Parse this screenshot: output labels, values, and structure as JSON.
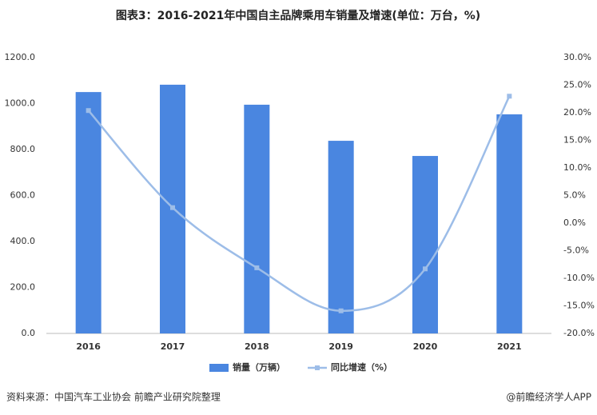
{
  "chart_data": {
    "type": "bar",
    "title": "图表3：2016-2021年中国自主品牌乘用车销量及增速(单位：万台，%)",
    "categories": [
      "2016",
      "2017",
      "2018",
      "2019",
      "2020",
      "2021"
    ],
    "series": [
      {
        "name": "销量（万辆）",
        "type": "bar",
        "color": "#4a86e0",
        "values": [
          1050,
          1082,
          995,
          838,
          772,
          953
        ]
      },
      {
        "name": "同比增速（%）",
        "type": "line",
        "axis": "y2",
        "color": "#9dbde8",
        "values": [
          20.4,
          2.8,
          -8.1,
          -15.9,
          -8.3,
          23.0
        ]
      }
    ],
    "ylim": [
      0,
      1200
    ],
    "yticks": [
      {
        "value": 0,
        "label": "0.0"
      },
      {
        "value": 200,
        "label": "200.0"
      },
      {
        "value": 400,
        "label": "400.0"
      },
      {
        "value": 600,
        "label": "600.0"
      },
      {
        "value": 800,
        "label": "800.0"
      },
      {
        "value": 1000,
        "label": "1000.0"
      },
      {
        "value": 1200,
        "label": "1200.0"
      }
    ],
    "y2lim": [
      -20,
      30
    ],
    "y2ticks": [
      {
        "value": -20,
        "label": "-20.0%"
      },
      {
        "value": -15,
        "label": "-15.0%"
      },
      {
        "value": -10,
        "label": "-10.0%"
      },
      {
        "value": -5,
        "label": "-5.0%"
      },
      {
        "value": 0,
        "label": "0.0%"
      },
      {
        "value": 5,
        "label": "5.0%"
      },
      {
        "value": 10,
        "label": "10.0%"
      },
      {
        "value": 15,
        "label": "15.0%"
      },
      {
        "value": 20,
        "label": "20.0%"
      },
      {
        "value": 25,
        "label": "25.0%"
      },
      {
        "value": 30,
        "label": "30.0%"
      }
    ],
    "source": "资料来源：中国汽车工业协会 前瞻产业研究院整理",
    "watermark": "@前瞻经济学人APP"
  }
}
